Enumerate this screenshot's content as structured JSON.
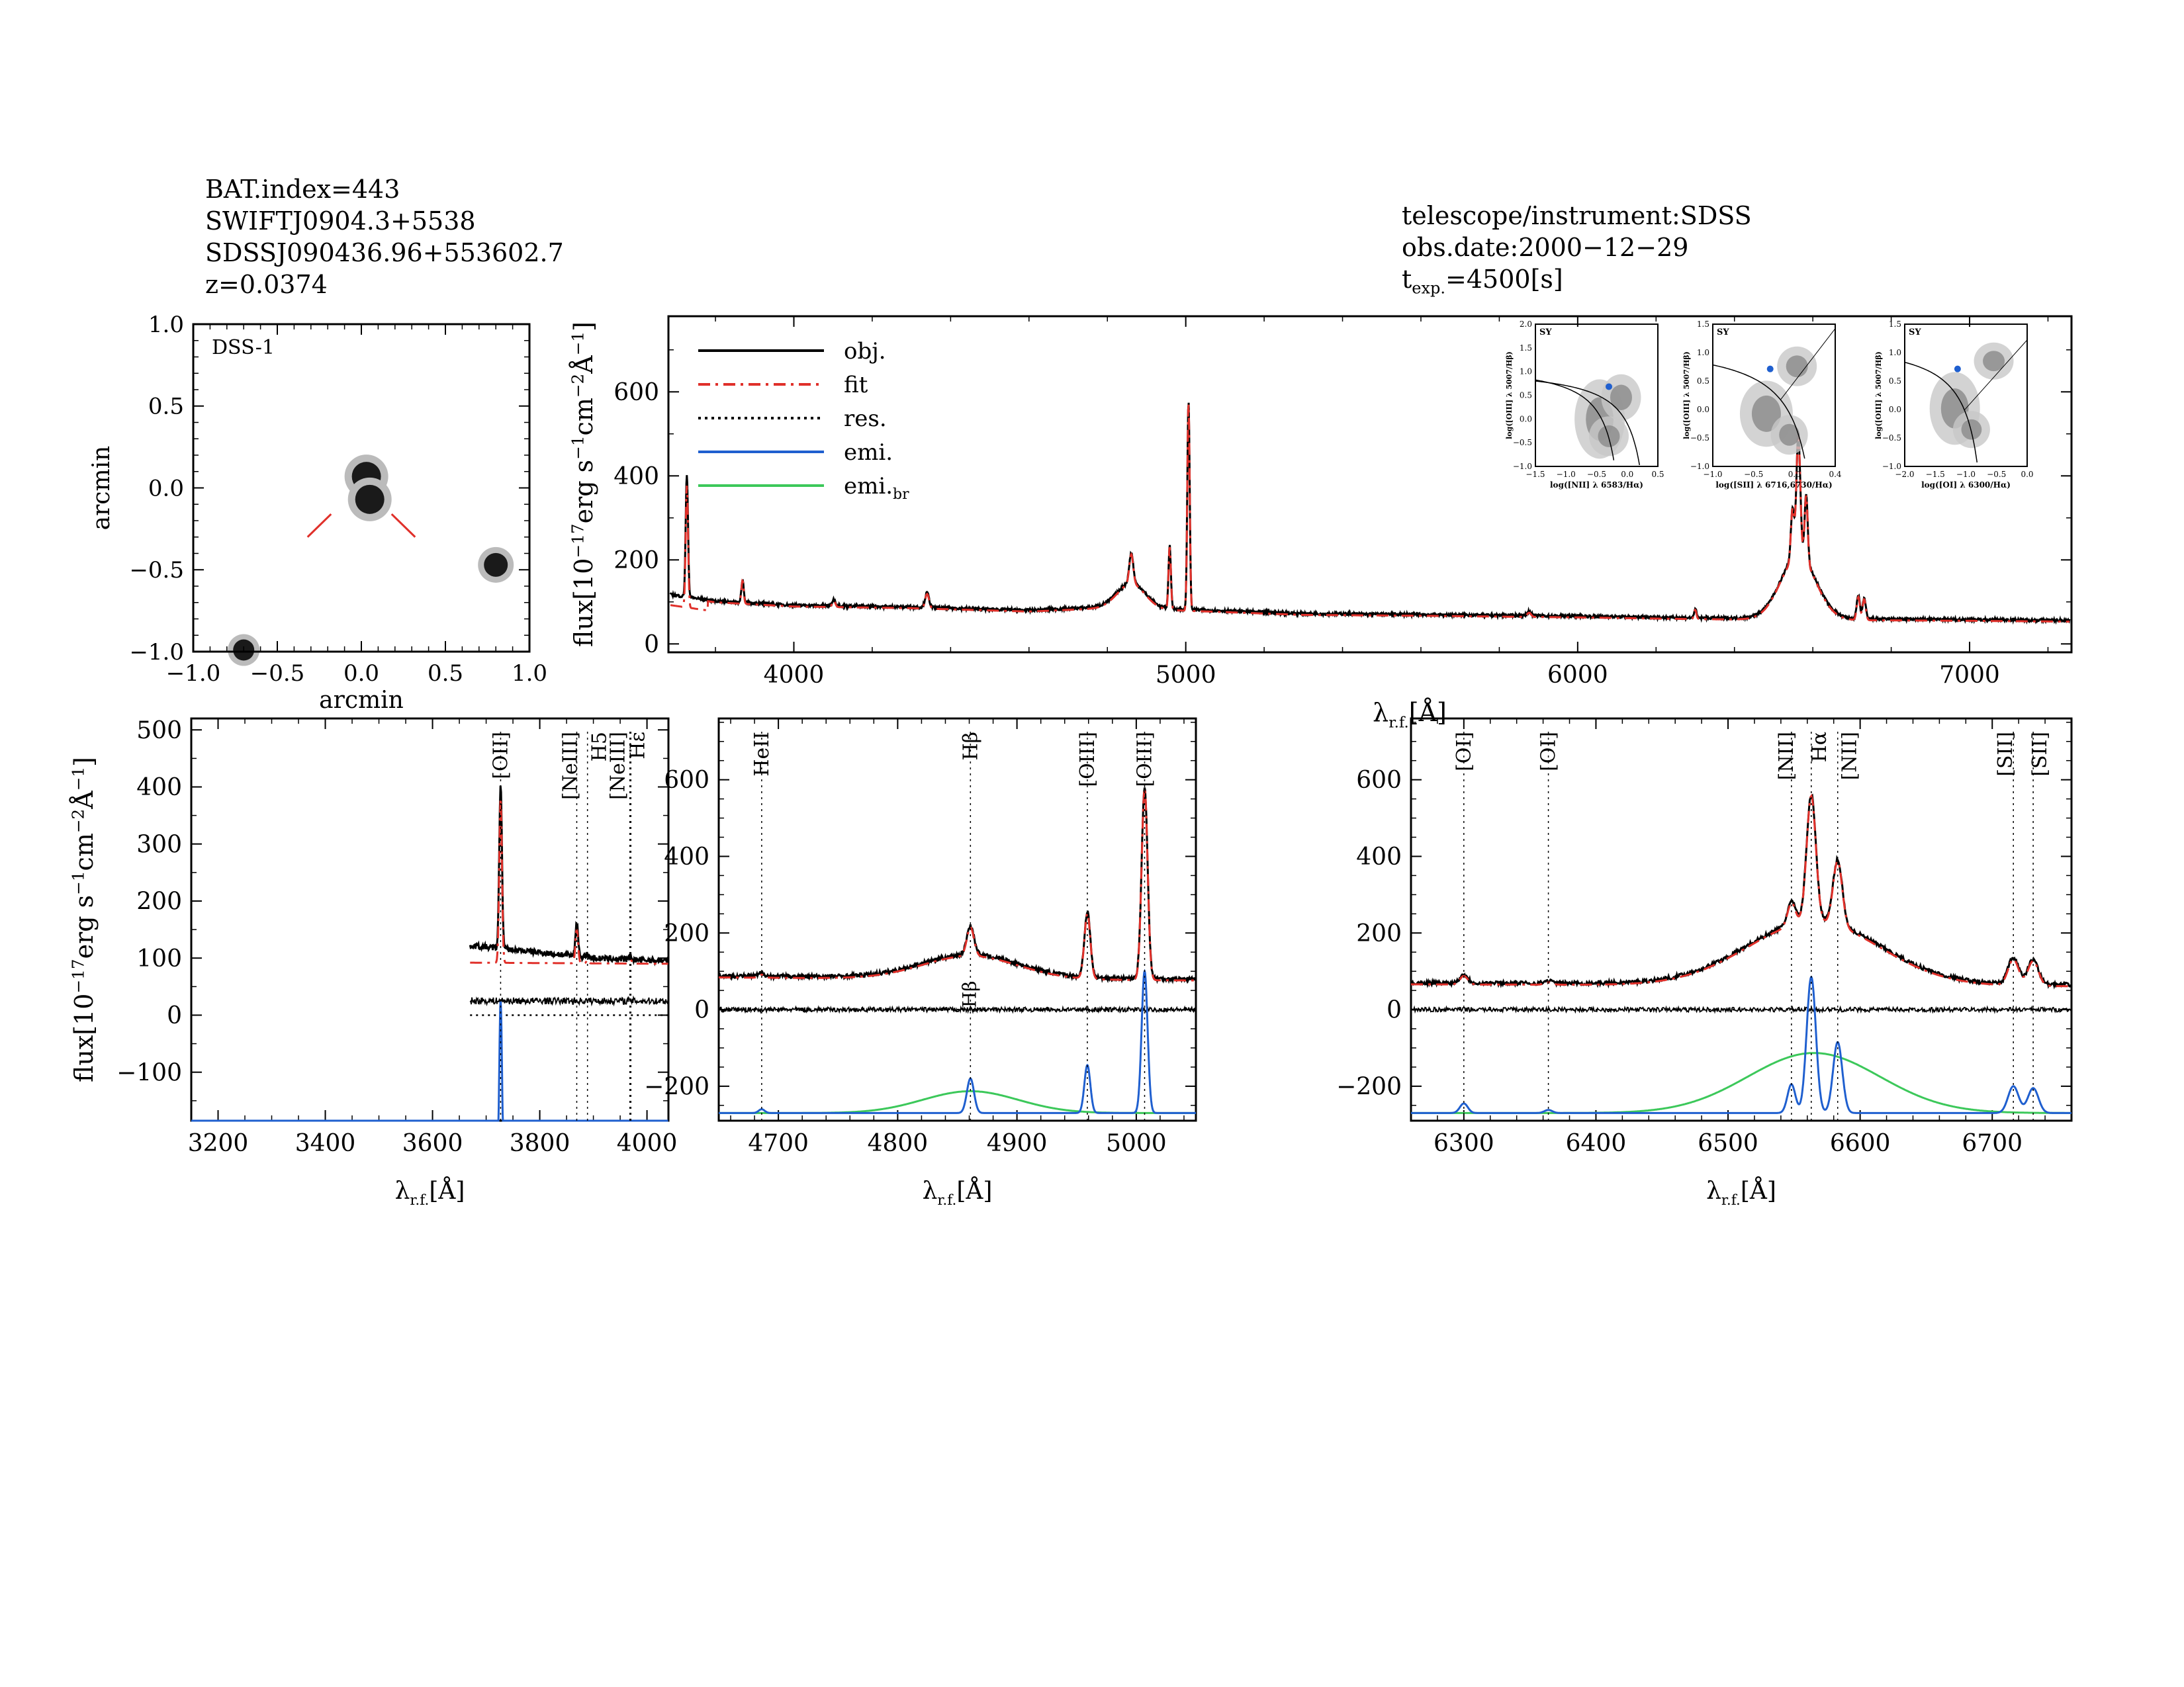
{
  "header_left": {
    "line1": "BAT.index=443",
    "line2": "SWIFTJ0904.3+5538",
    "line3": "SDSSJ090436.96+553602.7",
    "line4": "z=0.0374"
  },
  "header_right": {
    "line1": "telescope/instrument:SDSS",
    "line2": "obs.date:2000−12−29",
    "line3_prefix": "t",
    "line3_sub": "exp.",
    "line3_suffix": "=4500[s]"
  },
  "colors": {
    "obj": "#000000",
    "fit": "#e0302a",
    "res": "#000000",
    "emi": "#1f5fcf",
    "emi_br": "#3cc85a",
    "marker": "#e0302a"
  },
  "image_panel": {
    "label": "DSS-1",
    "xlabel": "arcmin",
    "ylabel": "arcmin",
    "xticks": [
      "−1.0",
      "−0.5",
      "0.0",
      "0.5",
      "1.0"
    ],
    "yticks": [
      "1.0",
      "0.5",
      "0.0",
      "−0.5",
      "−1.0"
    ]
  },
  "chart_data": [
    {
      "panel": "full-spectrum",
      "type": "line",
      "xlabel_main": "λ",
      "xlabel_sub": "r.f.",
      "xlabel_unit": "[Å]",
      "ylabel_prefix": "flux[10",
      "ylabel_exp1": "−17",
      "ylabel_mid": "erg s",
      "ylabel_exp2": "−1",
      "ylabel_mid2": "cm",
      "ylabel_exp3": "−2",
      "ylabel_end": "Å",
      "ylabel_exp4": "−1",
      "ylabel_close": "]",
      "xlim": [
        3680,
        7260
      ],
      "ylim": [
        -20,
        780
      ],
      "xticks": [
        4000,
        5000,
        6000,
        7000
      ],
      "yticks": [
        0,
        200,
        400,
        600
      ],
      "continuum": [
        [
          3680,
          118
        ],
        [
          3800,
          102
        ],
        [
          4000,
          92
        ],
        [
          4300,
          88
        ],
        [
          4600,
          80
        ],
        [
          4800,
          88
        ],
        [
          5000,
          82
        ],
        [
          5300,
          72
        ],
        [
          5600,
          70
        ],
        [
          6000,
          66
        ],
        [
          6300,
          62
        ],
        [
          6600,
          60
        ],
        [
          7000,
          58
        ],
        [
          7260,
          56
        ]
      ],
      "lines": [
        {
          "c": 3727,
          "a": 290,
          "w": 3
        },
        {
          "c": 3869,
          "a": 55,
          "w": 3
        },
        {
          "c": 4102,
          "a": 15,
          "w": 4
        },
        {
          "c": 4340,
          "a": 35,
          "w": 5
        },
        {
          "c": 4861,
          "a": 70,
          "w": 5
        },
        {
          "c": 4861,
          "a": 60,
          "w": 35
        },
        {
          "c": 4959,
          "a": 150,
          "w": 3
        },
        {
          "c": 5007,
          "a": 495,
          "w": 3
        },
        {
          "c": 5876,
          "a": 10,
          "w": 5
        },
        {
          "c": 6300,
          "a": 22,
          "w": 3
        },
        {
          "c": 6548,
          "a": 120,
          "w": 4
        },
        {
          "c": 6563,
          "a": 290,
          "w": 5
        },
        {
          "c": 6583,
          "a": 160,
          "w": 4
        },
        {
          "c": 6563,
          "a": 150,
          "w": 45
        },
        {
          "c": 6716,
          "a": 55,
          "w": 4
        },
        {
          "c": 6731,
          "a": 50,
          "w": 4
        }
      ],
      "legend": {
        "placement": "top-left",
        "entries": [
          {
            "label": "obj.",
            "sub": "",
            "style": "solid",
            "color": "#000000"
          },
          {
            "label": "fit",
            "sub": "",
            "style": "dashdot",
            "color": "#e0302a"
          },
          {
            "label": "res.",
            "sub": "",
            "style": "dotted",
            "color": "#000000"
          },
          {
            "label": "emi.",
            "sub": "",
            "style": "solid",
            "color": "#1f5fcf"
          },
          {
            "label": "emi.",
            "sub": "br",
            "style": "solid",
            "color": "#3cc85a"
          }
        ]
      }
    },
    {
      "panel": "oii-region",
      "type": "line",
      "xlim": [
        3150,
        4040
      ],
      "ylim": [
        -185,
        520
      ],
      "xticks": [
        3200,
        3400,
        3600,
        3800,
        4000
      ],
      "yticks": [
        -100,
        0,
        100,
        200,
        300,
        400,
        500
      ],
      "data_xmin": 3670,
      "continuum": [
        [
          3670,
          122
        ],
        [
          3800,
          110
        ],
        [
          3900,
          100
        ],
        [
          4040,
          95
        ]
      ],
      "fit_continuum": [
        [
          3670,
          96
        ],
        [
          4040,
          94
        ]
      ],
      "residual_offset": 25,
      "emi_baseline": -270,
      "lines": [
        {
          "c": 3727,
          "a": 290,
          "w": 2.5,
          "emi": 295
        },
        {
          "c": 3869,
          "a": 60,
          "w": 2.5,
          "emi": 65
        },
        {
          "c": 3889,
          "a": 6,
          "w": 2,
          "emi": 6
        },
        {
          "c": 3970,
          "a": 6,
          "w": 2,
          "emi": 8
        }
      ],
      "line_labels": [
        {
          "x": 3727,
          "label": "[OII]"
        },
        {
          "x": 3869,
          "label": "[NeIII]"
        },
        {
          "x": 3889,
          "label": "H5"
        },
        {
          "x": 3968,
          "label": "[NeIII]"
        },
        {
          "x": 3970,
          "label": "Hε"
        }
      ]
    },
    {
      "panel": "hbeta-region",
      "type": "line",
      "xlim": [
        4650,
        5050
      ],
      "ylim": [
        -290,
        760
      ],
      "xticks": [
        4700,
        4800,
        4900,
        5000
      ],
      "yticks": [
        -200,
        0,
        200,
        400,
        600
      ],
      "continuum": [
        [
          4650,
          88
        ],
        [
          5050,
          80
        ]
      ],
      "emi_baseline": -270,
      "broad": {
        "c": 4861,
        "a": 60,
        "w": 40
      },
      "lines": [
        {
          "c": 4686,
          "a": 8,
          "w": 2.5,
          "emi": 10
        },
        {
          "c": 4861,
          "a": 75,
          "w": 3,
          "emi": 90
        },
        {
          "c": 4959,
          "a": 170,
          "w": 2.5,
          "emi": 125
        },
        {
          "c": 5007,
          "a": 500,
          "w": 2.5,
          "emi": 370
        }
      ],
      "line_labels": [
        {
          "x": 4686,
          "label": "HeII"
        },
        {
          "x": 4861,
          "label": "Hβ"
        },
        {
          "x": 4959,
          "label": "[OIII]"
        },
        {
          "x": 5007,
          "label": "[OIII]"
        }
      ],
      "extra_labels": [
        {
          "x": 4861,
          "label": "Hβ"
        }
      ]
    },
    {
      "panel": "halpha-region",
      "type": "line",
      "xlim": [
        6260,
        6760
      ],
      "ylim": [
        -290,
        760
      ],
      "xticks": [
        6300,
        6400,
        6500,
        6600,
        6700
      ],
      "yticks": [
        -200,
        0,
        200,
        400,
        600
      ],
      "continuum": [
        [
          6260,
          70
        ],
        [
          6760,
          65
        ]
      ],
      "emi_baseline": -270,
      "broad": {
        "c": 6565,
        "a": 165,
        "w": 50
      },
      "lines": [
        {
          "c": 6300,
          "a": 22,
          "w": 3,
          "emi": 25
        },
        {
          "c": 6364,
          "a": 6,
          "w": 3,
          "emi": 8
        },
        {
          "c": 6548,
          "a": 60,
          "w": 3,
          "emi": 75
        },
        {
          "c": 6563,
          "a": 330,
          "w": 3.5,
          "emi": 355
        },
        {
          "c": 6583,
          "a": 170,
          "w": 3.5,
          "emi": 185
        },
        {
          "c": 6716,
          "a": 68,
          "w": 4,
          "emi": 70
        },
        {
          "c": 6731,
          "a": 65,
          "w": 4,
          "emi": 65
        }
      ],
      "line_labels": [
        {
          "x": 6300,
          "label": "[OI]"
        },
        {
          "x": 6364,
          "label": "[OI]"
        },
        {
          "x": 6548,
          "label": "[NII]"
        },
        {
          "x": 6563,
          "label": "Hα"
        },
        {
          "x": 6583,
          "label": "[NII]"
        },
        {
          "x": 6716,
          "label": "[SII]"
        },
        {
          "x": 6731,
          "label": "[SII]"
        }
      ]
    },
    {
      "panel": "bpt-nii",
      "type": "scatter",
      "tag": "SY",
      "xlabel": "log([NII] λ 6583/Hα)",
      "ylabel": "log([OIII] λ 5007/Hβ)",
      "xlim": [
        -1.5,
        0.5
      ],
      "ylim": [
        -1.1,
        2.2
      ],
      "xticks": [
        "−1.5",
        "−1.0",
        "−0.5",
        "0.0",
        "0.5"
      ],
      "yticks": [
        "2.0",
        "1.5",
        "1.0",
        "0.5",
        "0.0",
        "−0.5",
        "−1.0"
      ],
      "point": [
        -0.3,
        0.75
      ]
    },
    {
      "panel": "bpt-sii",
      "type": "scatter",
      "tag": "SY",
      "xlabel": "log([SII] λ 6716,6730/Hα)",
      "ylabel": "log([OIII] λ 5007/Hβ)",
      "xlim": [
        -1.2,
        0.4
      ],
      "ylim": [
        -1.1,
        1.6
      ],
      "xticks": [
        "−1.0",
        "−0.5",
        "0.0",
        "0.4"
      ],
      "yticks": [
        "1.5",
        "1.0",
        "0.5",
        "0.0",
        "−0.5",
        "−1.0"
      ],
      "point": [
        -0.45,
        0.75
      ]
    },
    {
      "panel": "bpt-oi",
      "type": "scatter",
      "tag": "SY",
      "xlabel": "log([OI] λ 6300/Hα)",
      "ylabel": "log([OIII] λ 5007/Hβ)",
      "xlim": [
        -2.2,
        0.0
      ],
      "ylim": [
        -1.1,
        1.6
      ],
      "xticks": [
        "−2.0",
        "−1.5",
        "−1.0",
        "−0.5",
        "0.0"
      ],
      "yticks": [
        "1.5",
        "1.0",
        "0.5",
        "0.0",
        "−0.5",
        "−1.0"
      ],
      "point": [
        -1.25,
        0.75
      ]
    }
  ]
}
